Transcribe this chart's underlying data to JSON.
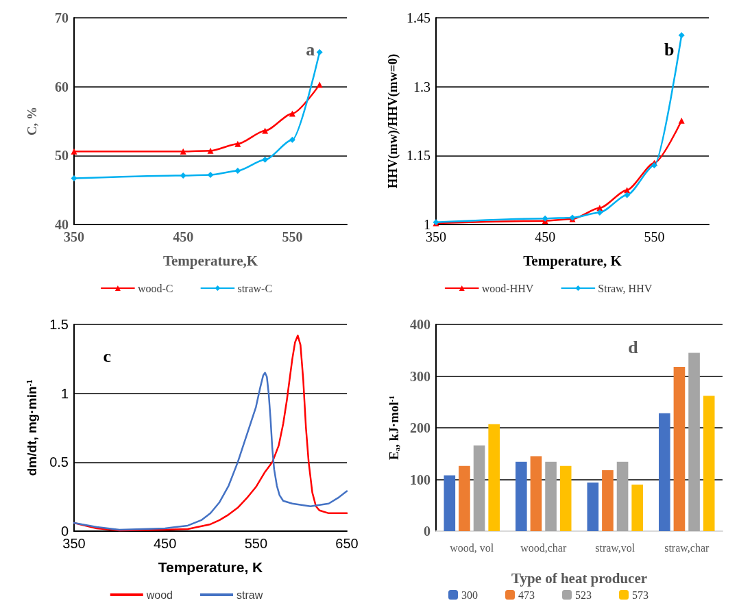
{
  "chart_data": [
    {
      "type": "line",
      "xlabel": "Temperature,K",
      "ylabel": "C, %",
      "annotations": [
        "a"
      ],
      "xlim": [
        350,
        600
      ],
      "xticks": [
        350,
        450,
        550
      ],
      "ylim": [
        40,
        70
      ],
      "yticks": [
        40,
        50,
        60,
        70
      ],
      "grid": "y",
      "legend": "bottom",
      "line_style": "solid",
      "series": [
        {
          "name": "wood-C",
          "color": "#ff0000",
          "marker": "triangle",
          "x": [
            350,
            450,
            475,
            500,
            525,
            550,
            575
          ],
          "values": [
            50.6,
            50.6,
            50.7,
            51.7,
            53.6,
            56.1,
            60.3
          ]
        },
        {
          "name": "straw-C",
          "color": "#00b0f0",
          "marker": "diamond",
          "x": [
            350,
            450,
            475,
            500,
            525,
            550,
            575
          ],
          "values": [
            46.7,
            47.1,
            47.2,
            47.8,
            49.4,
            52.3,
            65.0
          ]
        }
      ]
    },
    {
      "type": "line",
      "xlabel": "Temperature, K",
      "ylabel": "HHV(mw)/HHV(mw=0)",
      "annotations": [
        "b"
      ],
      "xlim": [
        350,
        600
      ],
      "xticks": [
        350,
        450,
        550
      ],
      "ylim": [
        1,
        1.45
      ],
      "yticks": [
        1,
        1.15,
        1.3,
        1.45
      ],
      "grid": "y",
      "legend": "bottom",
      "line_style": "solid",
      "series": [
        {
          "name": "wood-HHV",
          "color": "#ff0000",
          "marker": "triangle",
          "x": [
            350,
            450,
            475,
            500,
            525,
            550,
            575
          ],
          "values": [
            1.003,
            1.008,
            1.012,
            1.036,
            1.075,
            1.134,
            1.226
          ]
        },
        {
          "name": "Straw, HHV",
          "color": "#00b0f0",
          "marker": "diamond",
          "x": [
            350,
            450,
            475,
            500,
            525,
            550,
            575
          ],
          "values": [
            1.005,
            1.013,
            1.015,
            1.026,
            1.064,
            1.129,
            1.412
          ]
        }
      ]
    },
    {
      "type": "line",
      "xlabel": "Temperature, K",
      "ylabel": "dm/dt, mg·min$^{-1}$",
      "annotations": [
        "c"
      ],
      "xlim": [
        350,
        650
      ],
      "xticks": [
        350,
        450,
        550,
        650
      ],
      "ylim": [
        0,
        1.5
      ],
      "yticks": [
        0,
        0.5,
        1,
        1.5
      ],
      "grid": "y",
      "legend": "bottom",
      "marker": "none",
      "line_style": "solid",
      "series": [
        {
          "name": "wood",
          "color": "#ff0000",
          "x": [
            350,
            375,
            400,
            450,
            475,
            500,
            510,
            520,
            530,
            540,
            550,
            560,
            568,
            575,
            580,
            584,
            587,
            590,
            593,
            596,
            599,
            602,
            605,
            608,
            612,
            616,
            620,
            630,
            640,
            650
          ],
          "values": [
            0.06,
            0.02,
            0.005,
            0.01,
            0.015,
            0.05,
            0.08,
            0.12,
            0.17,
            0.24,
            0.32,
            0.43,
            0.5,
            0.62,
            0.78,
            0.95,
            1.1,
            1.25,
            1.37,
            1.42,
            1.35,
            1.1,
            0.75,
            0.5,
            0.28,
            0.18,
            0.15,
            0.13,
            0.13,
            0.13
          ]
        },
        {
          "name": "straw",
          "color": "#4472c4",
          "x": [
            350,
            375,
            400,
            450,
            475,
            490,
            500,
            510,
            520,
            530,
            540,
            550,
            555,
            558,
            560,
            562,
            564,
            566,
            568,
            570,
            573,
            576,
            580,
            590,
            600,
            610,
            620,
            630,
            640,
            650
          ],
          "values": [
            0.06,
            0.03,
            0.01,
            0.02,
            0.04,
            0.08,
            0.13,
            0.21,
            0.33,
            0.5,
            0.7,
            0.9,
            1.05,
            1.13,
            1.15,
            1.12,
            1.0,
            0.82,
            0.6,
            0.45,
            0.33,
            0.26,
            0.22,
            0.2,
            0.19,
            0.18,
            0.19,
            0.2,
            0.24,
            0.29
          ]
        }
      ]
    },
    {
      "type": "bar",
      "xlabel": "Type of heat producer",
      "ylabel": "E$_{a}$, kJ·mol$^{-1}$",
      "annotations": [
        "d"
      ],
      "categories": [
        "wood, vol",
        "wood,char",
        "straw,vol",
        "straw,char"
      ],
      "ylim": [
        0,
        400
      ],
      "yticks": [
        0,
        100,
        200,
        300,
        400
      ],
      "grid": "y",
      "legend": "bottom",
      "series": [
        {
          "name": "300",
          "color": "#4472c4",
          "values": [
            108,
            134,
            94,
            228
          ]
        },
        {
          "name": "473",
          "color": "#ed7d31",
          "values": [
            126,
            145,
            118,
            318
          ]
        },
        {
          "name": "523",
          "color": "#a5a5a5",
          "values": [
            166,
            134,
            134,
            345
          ]
        },
        {
          "name": "573",
          "color": "#ffc000",
          "values": [
            207,
            126,
            90,
            262
          ]
        }
      ]
    }
  ]
}
